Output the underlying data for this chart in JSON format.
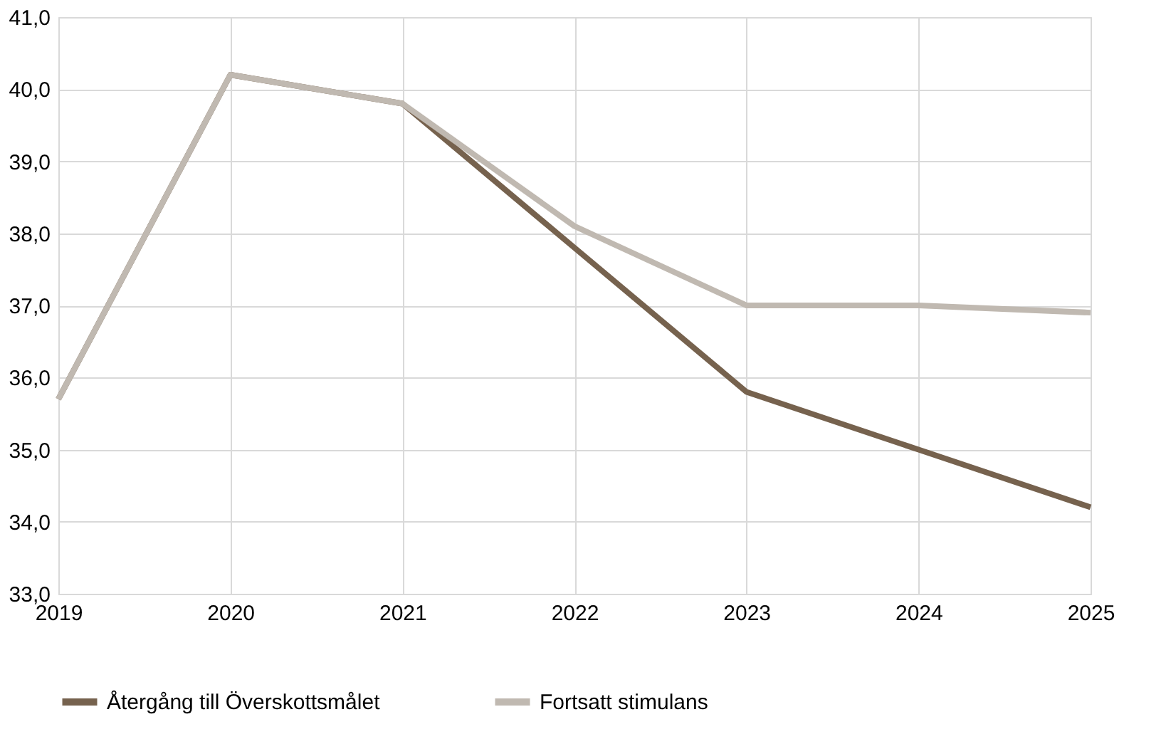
{
  "chart_data": {
    "type": "line",
    "categories": [
      "2019",
      "2020",
      "2021",
      "2022",
      "2023",
      "2024",
      "2025"
    ],
    "series": [
      {
        "name": "Återgång till Överskottsmålet",
        "color": "#76624e",
        "values": [
          35.7,
          40.2,
          39.8,
          37.8,
          35.8,
          35.0,
          34.2
        ]
      },
      {
        "name": "Fortsatt stimulans",
        "color": "#c0b9b1",
        "values": [
          35.7,
          40.2,
          39.8,
          38.1,
          37.0,
          37.0,
          36.9
        ]
      }
    ],
    "ylim": [
      33,
      41
    ],
    "yticks": [
      {
        "value": 33,
        "label": "33,0"
      },
      {
        "value": 34,
        "label": "34,0"
      },
      {
        "value": 35,
        "label": "35,0"
      },
      {
        "value": 36,
        "label": "36,0"
      },
      {
        "value": 37,
        "label": "37,0"
      },
      {
        "value": 38,
        "label": "38,0"
      },
      {
        "value": 39,
        "label": "39,0"
      },
      {
        "value": 40,
        "label": "40,0"
      },
      {
        "value": 41,
        "label": "41,0"
      }
    ],
    "grid": true,
    "legend": "bottom",
    "marker": "none",
    "line_style": "solid"
  }
}
